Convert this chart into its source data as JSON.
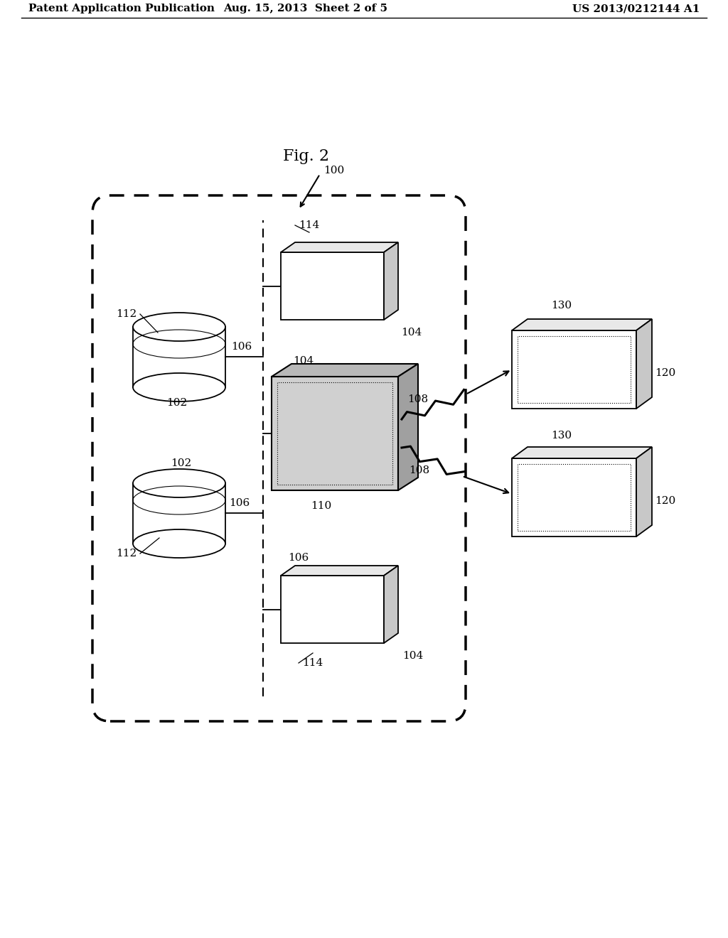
{
  "fig_label": "Fig. 2",
  "header_left": "Patent Application Publication",
  "header_center": "Aug. 15, 2013  Sheet 2 of 5",
  "header_right": "US 2013/0212144 A1",
  "bg_color": "#ffffff",
  "text_color": "#000000",
  "labels": {
    "100": "100",
    "102": "102",
    "104": "104",
    "106": "106",
    "108": "108",
    "110": "110",
    "112": "112",
    "114": "114",
    "120": "120",
    "130": "130"
  }
}
